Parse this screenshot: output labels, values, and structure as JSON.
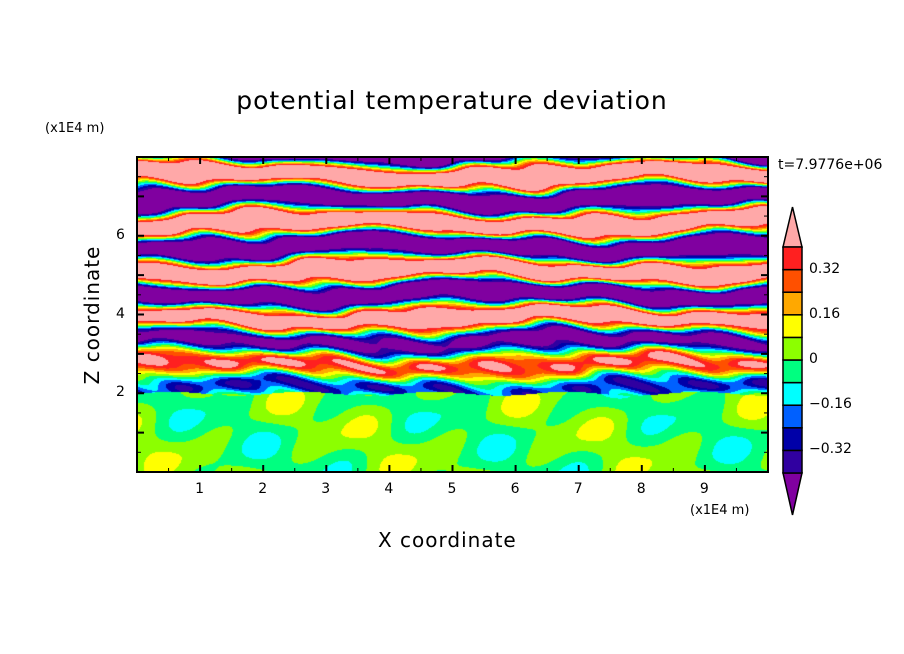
{
  "chart_data": {
    "type": "heatmap",
    "title": "potential temperature deviation",
    "xlabel": "X coordinate",
    "ylabel": "Z coordinate",
    "x_unit": "(x1E4 m)",
    "y_unit": "(x1E4 m)",
    "time_label": "t=7.9776e+06",
    "xlim": [
      0,
      10
    ],
    "ylim": [
      0,
      8
    ],
    "xticks": [
      "1",
      "2",
      "3",
      "4",
      "5",
      "6",
      "7",
      "8",
      "9"
    ],
    "yticks": [
      "2",
      "4",
      "6"
    ],
    "levels": [
      -0.4,
      -0.32,
      -0.24,
      -0.16,
      -0.08,
      0,
      0.08,
      0.16,
      0.24,
      0.32,
      0.4
    ],
    "colorbar_labels": [
      {
        "value": 0.32,
        "text": "0.32"
      },
      {
        "value": 0.16,
        "text": "0.16"
      },
      {
        "value": 0,
        "text": "0"
      },
      {
        "value": -0.16,
        "text": "−0.16"
      },
      {
        "value": -0.32,
        "text": "−0.32"
      }
    ],
    "colors": [
      "#8000a0",
      "#3000a0",
      "#0000a8",
      "#0060ff",
      "#00ffff",
      "#00ff80",
      "#8cff00",
      "#ffff00",
      "#ffa800",
      "#ff5000",
      "#ff2020",
      "#ffa8a8"
    ],
    "description_regions": {
      "stable_layer_top": 2
    }
  }
}
